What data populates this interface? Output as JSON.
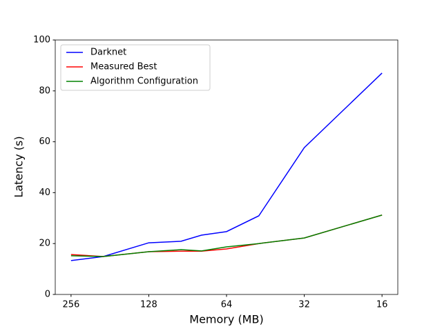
{
  "chart_data": {
    "type": "line",
    "x_label": "Memory (MB)",
    "y_label": "Latency (s)",
    "x": [
      256,
      192,
      128,
      96,
      80,
      64,
      48,
      32,
      16
    ],
    "xscale": "log",
    "xlim": [
      294.7,
      13.9
    ],
    "xticks": [
      256,
      128,
      64,
      32,
      16
    ],
    "ylim": [
      0,
      100
    ],
    "yticks": [
      0,
      20,
      40,
      60,
      80,
      100
    ],
    "legend": "upper left",
    "series": [
      {
        "name": "Darknet",
        "color": "#0000ff",
        "values": [
          13.3,
          14.9,
          20.3,
          20.9,
          23.3,
          24.7,
          30.9,
          57.7,
          87.0
        ]
      },
      {
        "name": "Measured Best",
        "color": "#ff0000",
        "values": [
          15.7,
          14.9,
          16.8,
          17.0,
          17.0,
          17.9,
          20.0,
          22.2,
          31.2
        ]
      },
      {
        "name": "Algorithm Configuration",
        "color": "#008000",
        "values": [
          15.2,
          14.9,
          16.8,
          17.6,
          17.1,
          18.7,
          20.0,
          22.2,
          31.2
        ]
      }
    ]
  }
}
